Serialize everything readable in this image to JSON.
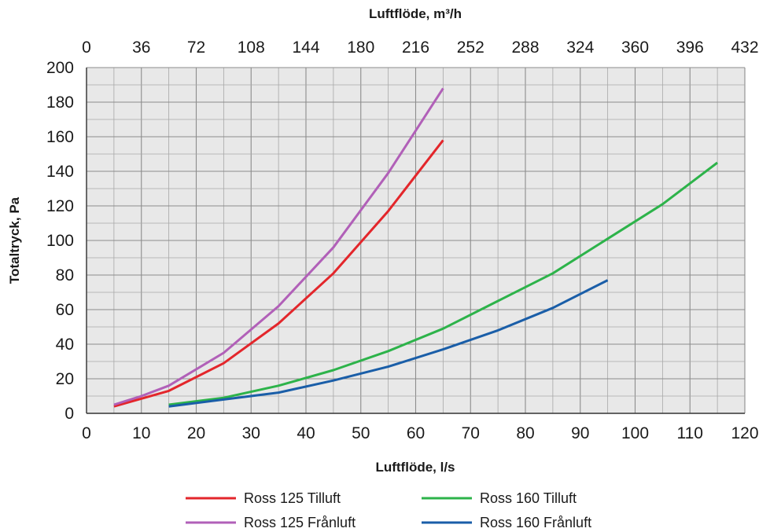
{
  "chart_data": {
    "type": "line",
    "xlabel": "Luftflöde, l/s",
    "x2label": "Luftflöde, m³/h",
    "ylabel": "Totaltryck, Pa",
    "xlim": [
      0,
      120
    ],
    "ylim": [
      0,
      200
    ],
    "x_ticks": [
      0,
      10,
      20,
      30,
      40,
      50,
      60,
      70,
      80,
      90,
      100,
      110,
      120
    ],
    "x2_ticks": [
      0,
      36,
      72,
      108,
      144,
      180,
      216,
      252,
      288,
      324,
      360,
      396,
      432
    ],
    "y_ticks": [
      0,
      20,
      40,
      60,
      80,
      100,
      120,
      140,
      160,
      180,
      200
    ],
    "grid": true,
    "legend_position": "bottom",
    "plot_background": "#e8e8e8",
    "series": [
      {
        "name": "Ross 125 Tilluft",
        "color": "#e3262b",
        "x": [
          5,
          10,
          15,
          25,
          35,
          45,
          55,
          65
        ],
        "y": [
          4,
          8.5,
          13,
          29,
          52,
          81,
          117,
          158
        ]
      },
      {
        "name": "Ross 125 Frånluft",
        "color": "#b160b8",
        "x": [
          5,
          10,
          15,
          25,
          35,
          45,
          55,
          65
        ],
        "y": [
          5,
          10,
          16,
          35,
          62,
          96,
          139,
          188
        ]
      },
      {
        "name": "Ross 160 Tilluft",
        "color": "#2db34a",
        "x": [
          15,
          25,
          35,
          45,
          55,
          65,
          75,
          85,
          95,
          105,
          115
        ],
        "y": [
          5,
          9,
          16,
          25,
          36,
          49,
          65,
          81,
          101,
          121,
          145
        ]
      },
      {
        "name": "Ross 160 Frånluft",
        "color": "#1a5ea8",
        "x": [
          15,
          25,
          35,
          45,
          55,
          65,
          75,
          85,
          95
        ],
        "y": [
          4,
          8,
          12,
          19,
          27,
          37,
          48,
          61,
          77
        ]
      }
    ]
  }
}
